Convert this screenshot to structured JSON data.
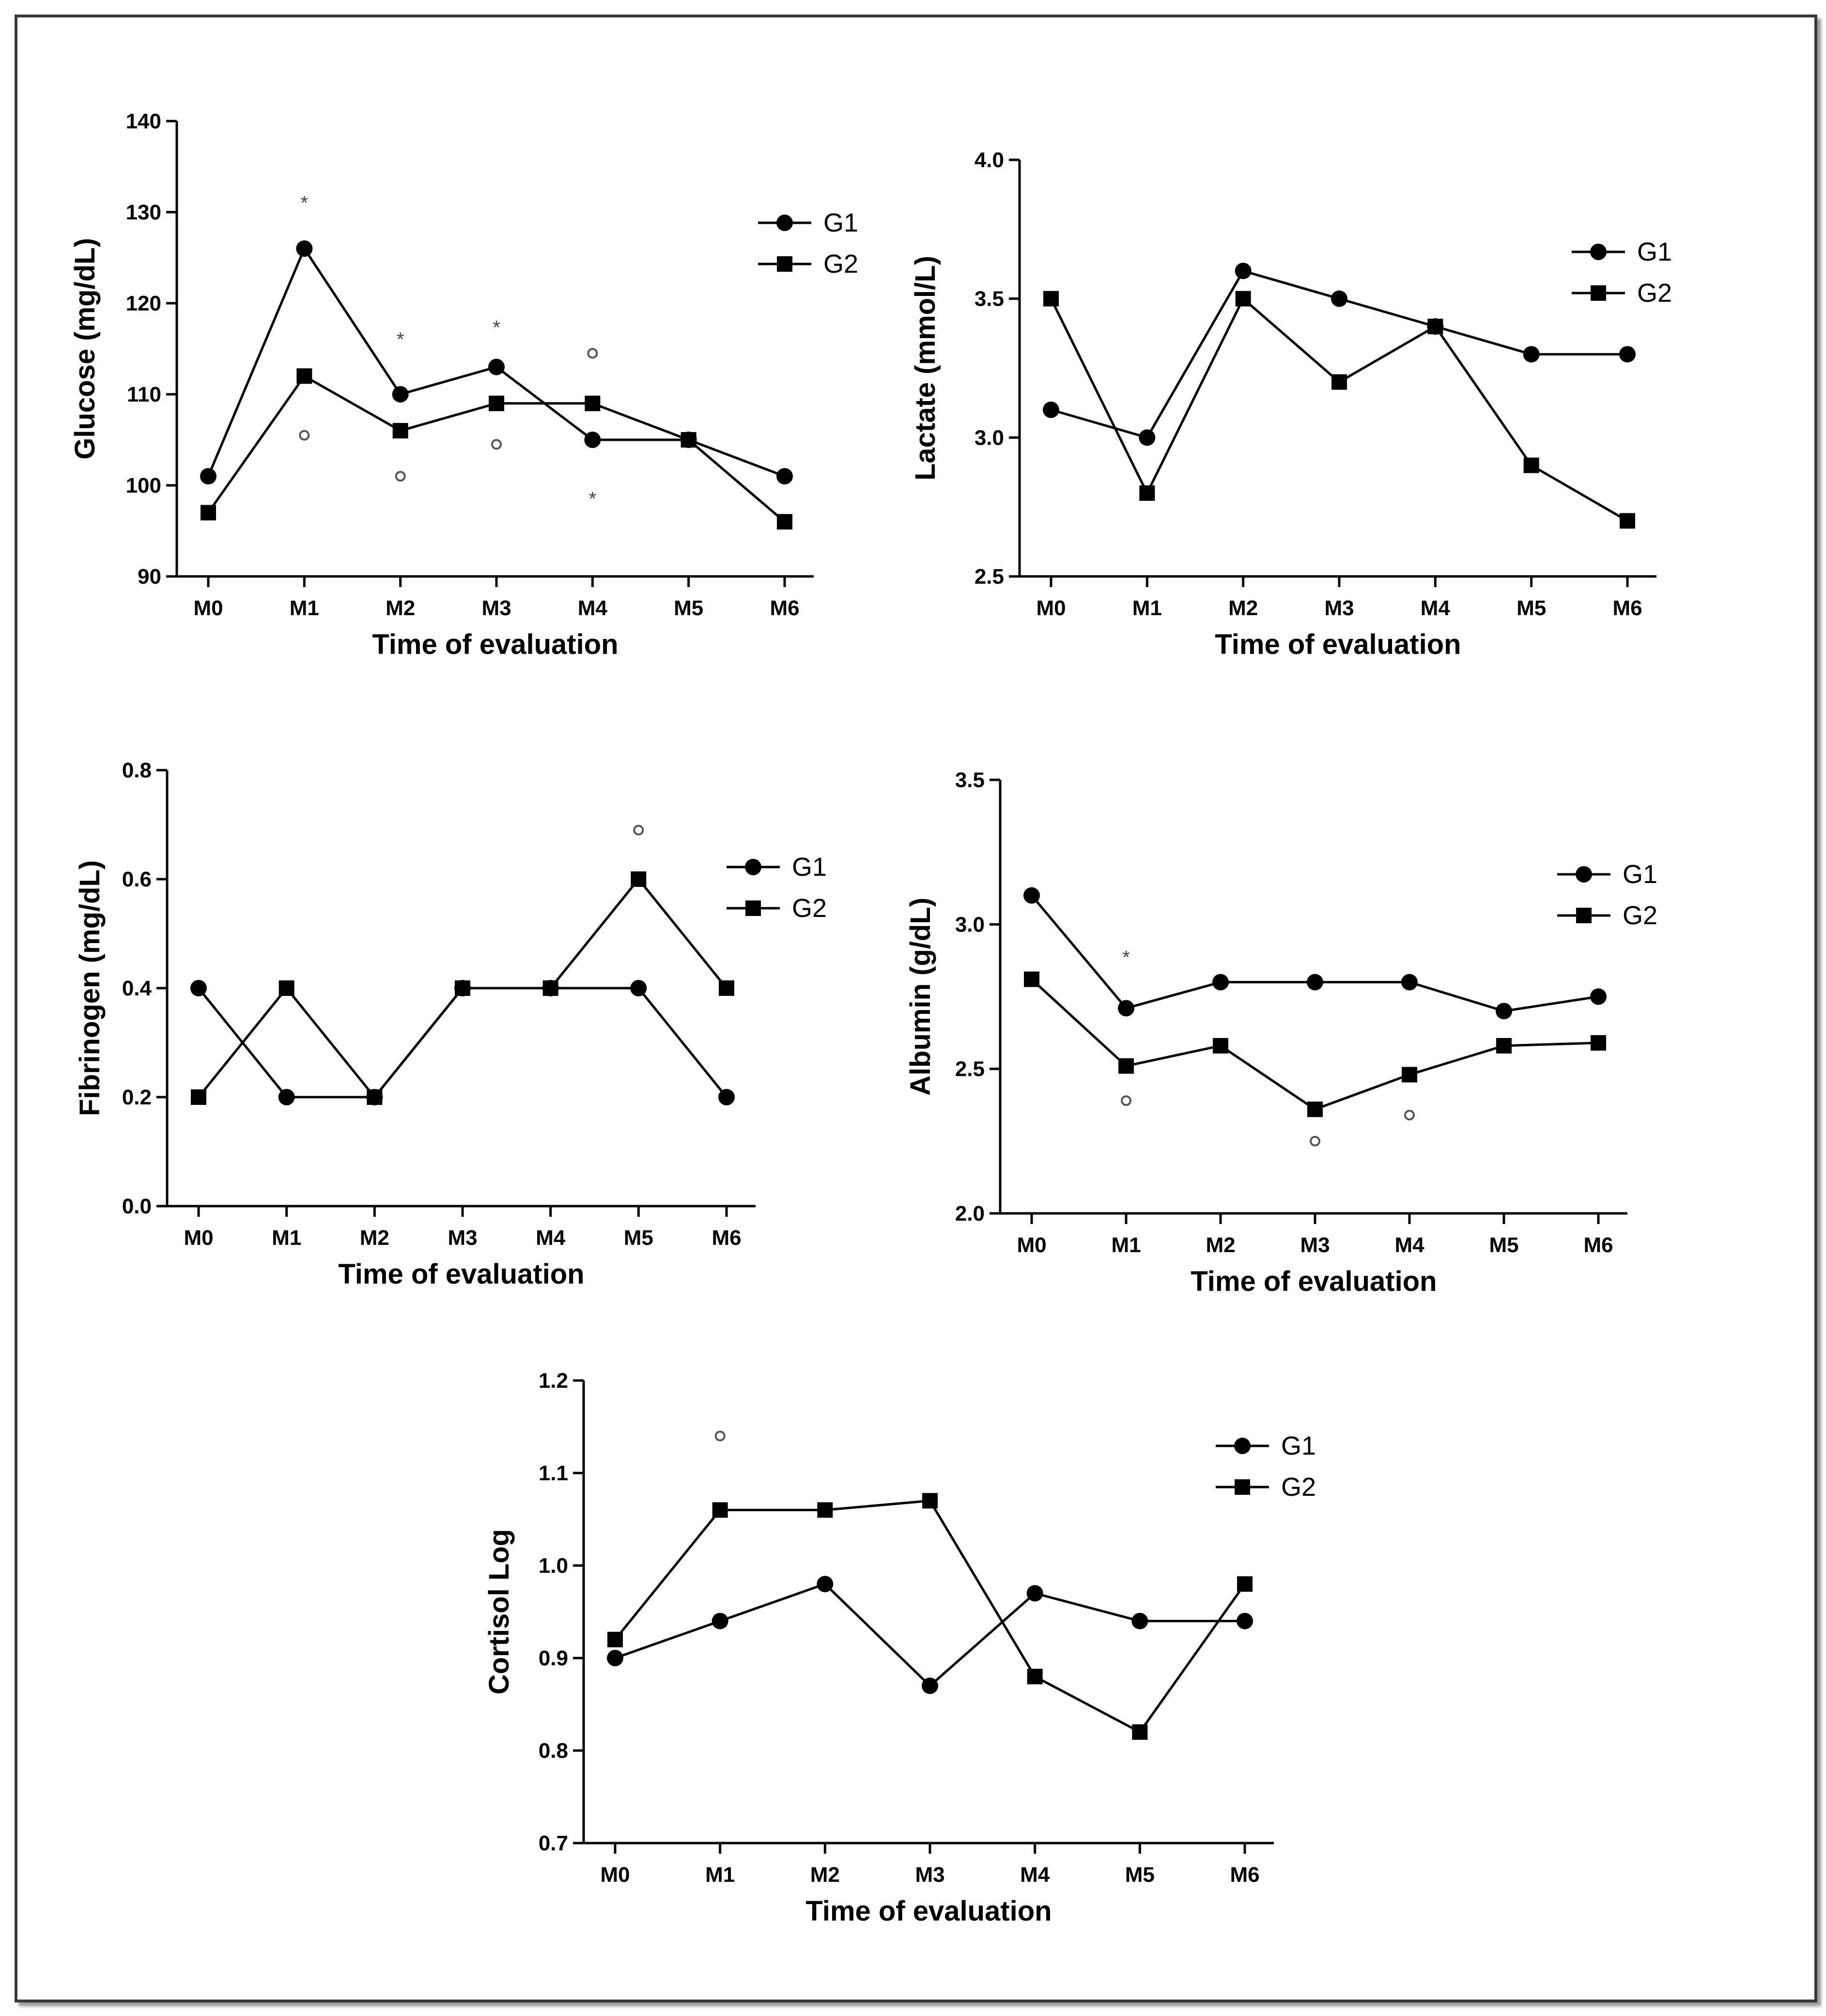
{
  "chart_data": [
    {
      "type": "line",
      "ylabel": "Glucose (mg/dL)",
      "xlabel": "Time of evaluation",
      "categories": [
        "M0",
        "M1",
        "M2",
        "M3",
        "M4",
        "M5",
        "M6"
      ],
      "ylim": [
        90,
        140
      ],
      "yticks": [
        90,
        100,
        110,
        120,
        130,
        140
      ],
      "ytick_labels": [
        "90",
        "100",
        "110",
        "120",
        "130",
        "140"
      ],
      "legend_position": "top-right",
      "series": [
        {
          "name": "G1",
          "marker": "circle",
          "values": [
            101,
            126,
            110,
            113,
            105,
            105,
            101
          ]
        },
        {
          "name": "G2",
          "marker": "square",
          "values": [
            97,
            112,
            106,
            109,
            109,
            105,
            96
          ]
        }
      ],
      "annotations": [
        {
          "text": "*",
          "x": "M1",
          "y": 131.5
        },
        {
          "text": "°",
          "x": "M1",
          "y": 105.5
        },
        {
          "text": "*",
          "x": "M2",
          "y": 116.5
        },
        {
          "text": "°",
          "x": "M2",
          "y": 101
        },
        {
          "text": "*",
          "x": "M3",
          "y": 117.8
        },
        {
          "text": "°",
          "x": "M3",
          "y": 104.5
        },
        {
          "text": "°",
          "x": "M4",
          "y": 114.5
        },
        {
          "text": "*",
          "x": "M4",
          "y": 99
        }
      ]
    },
    {
      "type": "line",
      "ylabel": "Lactate (mmol/L)",
      "xlabel": "Time of evaluation",
      "categories": [
        "M0",
        "M1",
        "M2",
        "M3",
        "M4",
        "M5",
        "M6"
      ],
      "ylim": [
        2.5,
        4.0
      ],
      "yticks": [
        2.5,
        3.0,
        3.5,
        4.0
      ],
      "ytick_labels": [
        "2.5",
        "3.0",
        "3.5",
        "4.0"
      ],
      "legend_position": "top-right",
      "series": [
        {
          "name": "G1",
          "marker": "circle",
          "values": [
            3.1,
            3.0,
            3.6,
            3.5,
            3.4,
            3.3,
            3.3
          ]
        },
        {
          "name": "G2",
          "marker": "square",
          "values": [
            3.5,
            2.8,
            3.5,
            3.2,
            3.4,
            2.9,
            2.7
          ]
        }
      ],
      "annotations": []
    },
    {
      "type": "line",
      "ylabel": "Fibrinogen (mg/dL)",
      "xlabel": "Time of evaluation",
      "categories": [
        "M0",
        "M1",
        "M2",
        "M3",
        "M4",
        "M5",
        "M6"
      ],
      "ylim": [
        0.0,
        0.8
      ],
      "yticks": [
        0.0,
        0.2,
        0.4,
        0.6,
        0.8
      ],
      "ytick_labels": [
        "0.0",
        "0.2",
        "0.4",
        "0.6",
        "0.8"
      ],
      "legend_position": "top-right",
      "series": [
        {
          "name": "G1",
          "marker": "circle",
          "values": [
            0.4,
            0.2,
            0.2,
            0.4,
            0.4,
            0.4,
            0.2
          ]
        },
        {
          "name": "G2",
          "marker": "square",
          "values": [
            0.2,
            0.4,
            0.2,
            0.4,
            0.4,
            0.6,
            0.4
          ]
        }
      ],
      "annotations": [
        {
          "text": "°",
          "x": "M5",
          "y": 0.69
        }
      ]
    },
    {
      "type": "line",
      "ylabel": "Albumin (g/dL)",
      "xlabel": "Time of evaluation",
      "categories": [
        "M0",
        "M1",
        "M2",
        "M3",
        "M4",
        "M5",
        "M6"
      ],
      "ylim": [
        2.0,
        3.5
      ],
      "yticks": [
        2.0,
        2.5,
        3.0,
        3.5
      ],
      "ytick_labels": [
        "2.0",
        "2.5",
        "3.0",
        "3.5"
      ],
      "legend_position": "top-right",
      "series": [
        {
          "name": "G1",
          "marker": "circle",
          "values": [
            3.1,
            2.71,
            2.8,
            2.8,
            2.8,
            2.7,
            2.75
          ]
        },
        {
          "name": "G2",
          "marker": "square",
          "values": [
            2.81,
            2.51,
            2.58,
            2.36,
            2.48,
            2.58,
            2.59
          ]
        }
      ],
      "annotations": [
        {
          "text": "*",
          "x": "M1",
          "y": 2.9
        },
        {
          "text": "°",
          "x": "M1",
          "y": 2.39
        },
        {
          "text": "°",
          "x": "M3",
          "y": 2.25
        },
        {
          "text": "°",
          "x": "M4",
          "y": 2.34
        }
      ]
    },
    {
      "type": "line",
      "ylabel": "Cortisol Log",
      "xlabel": "Time of evaluation",
      "categories": [
        "M0",
        "M1",
        "M2",
        "M3",
        "M4",
        "M5",
        "M6"
      ],
      "ylim": [
        0.7,
        1.2
      ],
      "yticks": [
        0.7,
        0.8,
        0.9,
        1.0,
        1.1,
        1.2
      ],
      "ytick_labels": [
        "0.7",
        "0.8",
        "0.9",
        "1.0",
        "1.1",
        "1.2"
      ],
      "legend_position": "top-right",
      "series": [
        {
          "name": "G1",
          "marker": "circle",
          "values": [
            0.9,
            0.94,
            0.98,
            0.87,
            0.97,
            0.94,
            0.94
          ]
        },
        {
          "name": "G2",
          "marker": "square",
          "values": [
            0.92,
            1.06,
            1.06,
            1.07,
            0.88,
            0.82,
            0.98
          ]
        }
      ],
      "annotations": [
        {
          "text": "°",
          "x": "M1",
          "y": 1.14
        }
      ]
    }
  ]
}
